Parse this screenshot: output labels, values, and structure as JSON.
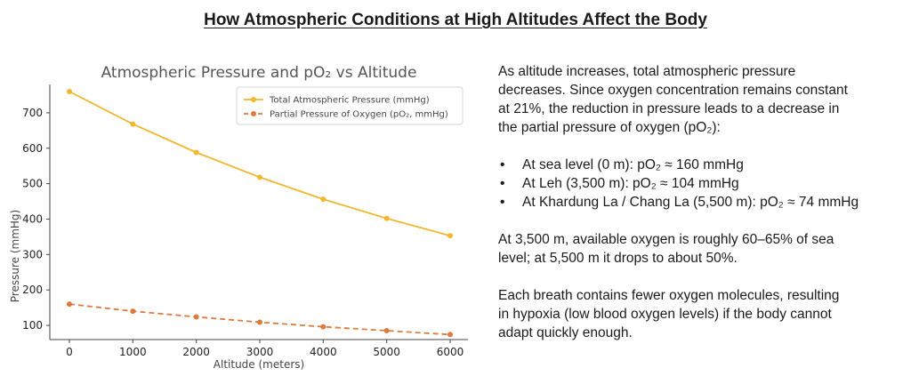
{
  "page": {
    "title": "How Atmospheric Conditions at High Altitudes Affect the Body"
  },
  "chart_data": {
    "type": "line",
    "title": "Atmospheric Pressure and pO₂ vs Altitude",
    "xlabel": "Altitude (meters)",
    "ylabel": "Pressure (mmHg)",
    "x": [
      0,
      1000,
      2000,
      3000,
      4000,
      5000,
      6000
    ],
    "xlim": [
      0,
      6000
    ],
    "ylim": [
      60,
      780
    ],
    "xticks": [
      0,
      1000,
      2000,
      3000,
      4000,
      5000,
      6000
    ],
    "yticks": [
      100,
      200,
      300,
      400,
      500,
      600,
      700
    ],
    "grid": false,
    "legend_position": "top-right",
    "series": [
      {
        "name": "Total Atmospheric Pressure (mmHg)",
        "values": [
          760,
          668,
          588,
          518,
          456,
          402,
          353
        ],
        "color": "#f2b72e",
        "line_style": "solid"
      },
      {
        "name": "Partial Pressure of Oxygen (pO₂, mmHg)",
        "values": [
          160,
          140,
          124,
          109,
          96,
          85,
          74
        ],
        "color": "#dd7a3e",
        "line_style": "dashed"
      }
    ]
  },
  "text_panel": {
    "intro": [
      "As altitude increases, total atmospheric pressure",
      "decreases. Since oxygen concentration remains constant",
      "at 21%, the reduction in pressure leads to a decrease in",
      "the partial pressure of oxygen (pO₂):"
    ],
    "bullets": [
      "At sea level (0 m): pO₂ ≈ 160 mmHg",
      "At Leh (3,500 m): pO₂ ≈ 104 mmHg",
      "At Khardung La / Chang La (5,500 m): pO₂ ≈ 74 mmHg"
    ],
    "oxygen_note": [
      "At 3,500 m, available oxygen is roughly 60–65% of sea",
      "level; at 5,500 m it drops to about 50%."
    ],
    "breath_note": [
      "Each breath contains fewer oxygen molecules, resulting",
      "in hypoxia (low blood oxygen levels) if the body cannot",
      "adapt quickly enough."
    ]
  }
}
